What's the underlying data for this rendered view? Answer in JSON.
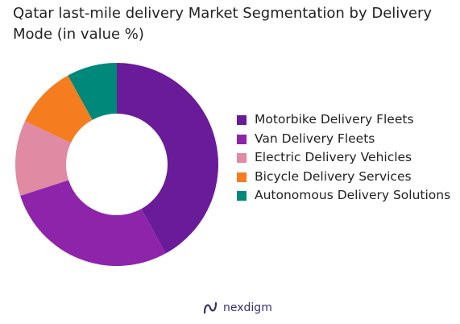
{
  "chart_data": {
    "type": "pie",
    "title": "Qatar last-mile delivery Market Segmentation by Delivery Mode (in value %)",
    "categories": [
      "Motorbike Delivery Fleets",
      "Van Delivery Fleets",
      "Electric Delivery Vehicles",
      "Bicycle Delivery Services",
      "Autonomous Delivery Solutions"
    ],
    "values": [
      42,
      28,
      12,
      10,
      8
    ],
    "colors": [
      "#6a1b9a",
      "#8e24aa",
      "#e08aa3",
      "#f57c1f",
      "#00897b"
    ],
    "legend_position": "right"
  },
  "brand": {
    "name": "nexdigm",
    "icon": "nexdigm-logo-icon"
  }
}
